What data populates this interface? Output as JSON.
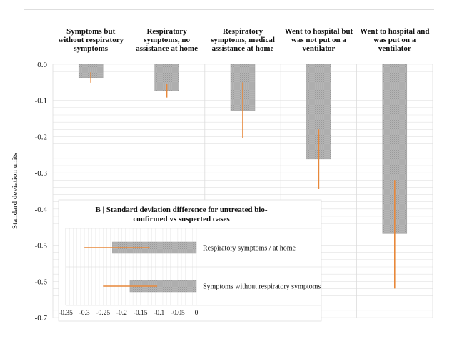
{
  "chart_data": [
    {
      "type": "bar",
      "title": "",
      "xlabel": "",
      "ylabel": "Standard deviation units",
      "ylim": [
        -0.7,
        0.0
      ],
      "yticks": [
        "0.0",
        "-0.1",
        "-0.2",
        "-0.3",
        "-0.4",
        "-0.5",
        "-0.6",
        "-0.7"
      ],
      "ytick_values": [
        0.0,
        -0.1,
        -0.2,
        -0.3,
        -0.4,
        -0.5,
        -0.6,
        -0.7
      ],
      "categories": [
        [
          "Symptoms but",
          "without respiratory",
          "symptoms"
        ],
        [
          "Respiratory",
          "symptoms, no",
          "assistance at home"
        ],
        [
          "Respiratory",
          "symptoms, medical",
          "assistance at home"
        ],
        [
          "Went to hospital but",
          "was not put on a",
          "ventilator"
        ],
        [
          "Went to hospital and",
          "was put on a",
          "ventilator"
        ]
      ],
      "values": [
        -0.037,
        -0.073,
        -0.128,
        -0.262,
        -0.468
      ],
      "ci_low": [
        -0.051,
        -0.092,
        -0.205,
        -0.345,
        -0.62
      ],
      "ci_high": [
        -0.022,
        -0.055,
        -0.05,
        -0.18,
        -0.32
      ],
      "grid": true
    },
    {
      "type": "bar",
      "orientation": "horizontal",
      "title": "B | Standard deviation difference for untreated bio-confirmed vs suspected cases",
      "title_lines": [
        "B | Standard deviation difference for untreated bio-",
        "confirmed vs suspected cases"
      ],
      "categories": [
        "Respiratory symptoms / at home",
        "Symptoms without respiratory symptoms"
      ],
      "values": [
        -0.225,
        -0.178
      ],
      "ci_low": [
        -0.3,
        -0.25
      ],
      "ci_high": [
        -0.125,
        -0.105
      ],
      "xlim": [
        -0.35,
        0.0
      ],
      "xticks": [
        "-0.35",
        "-0.3",
        "-0.25",
        "-0.2",
        "-0.15",
        "-0.1",
        "-0.05",
        "0"
      ],
      "xtick_values": [
        -0.35,
        -0.3,
        -0.25,
        -0.2,
        -0.15,
        -0.1,
        -0.05,
        0.0
      ],
      "grid": true
    }
  ],
  "colors": {
    "bar_fill": "#b3b3b3",
    "bar_hatch": "#8c8c8c",
    "error_bar": "#e8883a",
    "grid": "#e2e2e2",
    "top_rule": "#bdbdbd"
  }
}
